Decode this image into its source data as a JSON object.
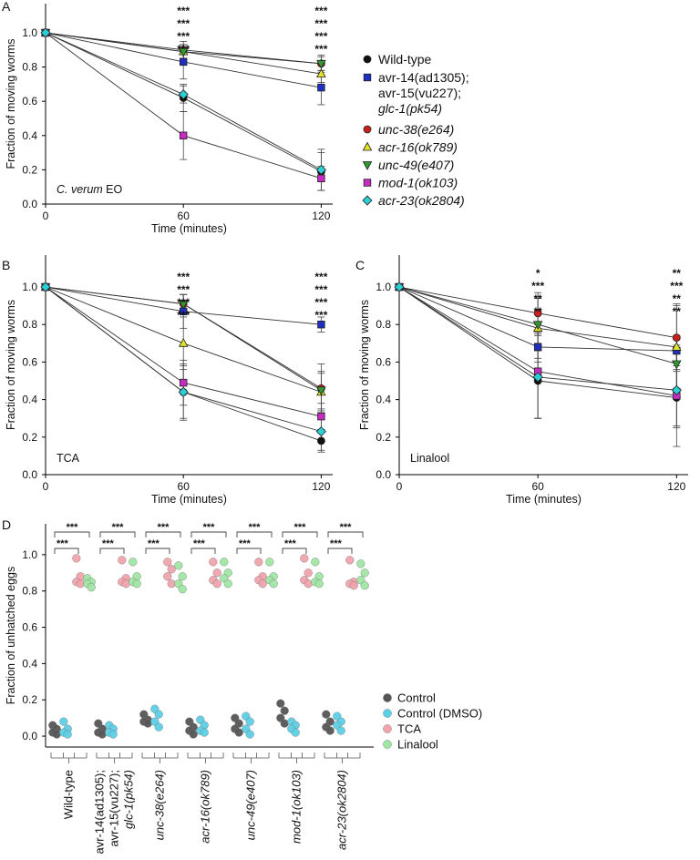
{
  "colors": {
    "wt": "#111111",
    "avr": "#1f2fbf",
    "unc38": "#c8201e",
    "acr16": "#e3e32a",
    "unc49": "#2f9a2f",
    "mod1": "#c62cc4",
    "acr23": "#2ad0d4",
    "star_blue": "#2a2ad8",
    "star_red": "#d82020",
    "star_yellow": "#e8e020",
    "star_green": "#20d020",
    "ctrl": "#555555",
    "dmso": "#5ccfe6",
    "tca": "#f0a3ac",
    "lin": "#9fe6a3"
  },
  "strains": [
    "Wild-type",
    "avr-14(ad1305); avr-15(vu227); glc-1(pk54)",
    "unc-38(e264)",
    "acr-16(ok789)",
    "unc-49(e407)",
    "mod-1(ok103)",
    "acr-23(ok2804)"
  ],
  "chart_data": [
    {
      "panel": "A",
      "type": "line",
      "note": "C. verum EO",
      "xlabel": "Time (minutes)",
      "ylabel": "Fraction of moving worms",
      "xticks": [
        0,
        60,
        120
      ],
      "yticks": [
        "0.0",
        "0.2",
        "0.4",
        "0.6",
        "0.8",
        "1.0"
      ],
      "xlim": [
        0,
        125
      ],
      "ylim": [
        0,
        1.17
      ],
      "x": [
        0,
        60,
        120
      ],
      "series": [
        {
          "name": "Wild-type",
          "key": "wt",
          "marker": "circle",
          "values": [
            1.0,
            0.62,
            0.19
          ],
          "err": [
            0,
            0.08,
            0.11
          ]
        },
        {
          "name": "avr-14(ad1305); avr-15(vu227); glc-1(pk54)",
          "key": "avr",
          "marker": "square",
          "values": [
            1.0,
            0.83,
            0.68
          ],
          "err": [
            0,
            0.1,
            0.1
          ]
        },
        {
          "name": "unc-38(e264)",
          "key": "unc38",
          "marker": "circle",
          "values": [
            1.0,
            0.9,
            0.82
          ],
          "err": [
            0,
            0.05,
            0.05
          ]
        },
        {
          "name": "acr-16(ok789)",
          "key": "acr16",
          "marker": "triangle-up",
          "values": [
            1.0,
            0.89,
            0.76
          ],
          "err": [
            0,
            0.04,
            0.05
          ]
        },
        {
          "name": "unc-49(e407)",
          "key": "unc49",
          "marker": "triangle-down",
          "values": [
            1.0,
            0.89,
            0.82
          ],
          "err": [
            0,
            0.04,
            0.04
          ]
        },
        {
          "name": "mod-1(ok103)",
          "key": "mod1",
          "marker": "square",
          "values": [
            1.0,
            0.4,
            0.15
          ],
          "err": [
            0,
            0.14,
            0.07
          ]
        },
        {
          "name": "acr-23(ok2804)",
          "key": "acr23",
          "marker": "diamond",
          "values": [
            1.0,
            0.64,
            0.2
          ],
          "err": [
            0,
            0.05,
            0.12
          ]
        }
      ],
      "sig": [
        {
          "x": 60,
          "stars": [
            {
              "t": "***",
              "c": "star_blue"
            },
            {
              "t": "***",
              "c": "star_red"
            },
            {
              "t": "***",
              "c": "star_yellow"
            },
            {
              "t": "***",
              "c": "star_green"
            }
          ]
        },
        {
          "x": 120,
          "stars": [
            {
              "t": "***",
              "c": "star_blue"
            },
            {
              "t": "***",
              "c": "star_red"
            },
            {
              "t": "***",
              "c": "star_yellow"
            },
            {
              "t": "***",
              "c": "star_green"
            }
          ]
        }
      ]
    },
    {
      "panel": "B",
      "type": "line",
      "note": "TCA",
      "xlabel": "Time (minutes)",
      "ylabel": "Fraction of moving worms",
      "xticks": [
        0,
        60,
        120
      ],
      "yticks": [
        "0.0",
        "0.2",
        "0.4",
        "0.6",
        "0.8",
        "1.0"
      ],
      "xlim": [
        0,
        125
      ],
      "ylim": [
        0,
        1.17
      ],
      "x": [
        0,
        60,
        120
      ],
      "series": [
        {
          "name": "Wild-type",
          "key": "wt",
          "marker": "circle",
          "values": [
            1.0,
            0.44,
            0.18
          ],
          "err": [
            0,
            0.15,
            0.06
          ]
        },
        {
          "name": "avr-14(ad1305); avr-15(vu227); glc-1(pk54)",
          "key": "avr",
          "marker": "square",
          "values": [
            1.0,
            0.87,
            0.8
          ],
          "err": [
            0,
            0.09,
            0.04
          ]
        },
        {
          "name": "unc-38(e264)",
          "key": "unc38",
          "marker": "circle",
          "values": [
            1.0,
            0.91,
            0.46
          ],
          "err": [
            0,
            0.05,
            0.13
          ]
        },
        {
          "name": "acr-16(ok789)",
          "key": "acr16",
          "marker": "triangle-up",
          "values": [
            1.0,
            0.7,
            0.44
          ],
          "err": [
            0,
            0.14,
            0.1
          ]
        },
        {
          "name": "unc-49(e407)",
          "key": "unc49",
          "marker": "triangle-down",
          "values": [
            1.0,
            0.91,
            0.45
          ],
          "err": [
            0,
            0.05,
            0.1
          ]
        },
        {
          "name": "mod-1(ok103)",
          "key": "mod1",
          "marker": "square",
          "values": [
            1.0,
            0.49,
            0.31
          ],
          "err": [
            0,
            0.12,
            0.07
          ]
        },
        {
          "name": "acr-23(ok2804)",
          "key": "acr23",
          "marker": "diamond",
          "values": [
            1.0,
            0.44,
            0.23
          ],
          "err": [
            0,
            0.14,
            0.1
          ]
        }
      ],
      "sig": [
        {
          "x": 60,
          "stars": [
            {
              "t": "***",
              "c": "star_blue"
            },
            {
              "t": "***",
              "c": "star_red"
            },
            {
              "t": "***",
              "c": "star_yellow"
            },
            {
              "t": "***",
              "c": "star_green"
            }
          ]
        },
        {
          "x": 120,
          "stars": [
            {
              "t": "***",
              "c": "star_blue"
            },
            {
              "t": "***",
              "c": "star_red"
            },
            {
              "t": "***",
              "c": "star_yellow"
            },
            {
              "t": "***",
              "c": "star_green"
            }
          ]
        }
      ]
    },
    {
      "panel": "C",
      "type": "line",
      "note": "Linalool",
      "xlabel": "Time (minutes)",
      "ylabel": "Fraction of moving worms",
      "xticks": [
        0,
        60,
        120
      ],
      "yticks": [
        "0.0",
        "0.2",
        "0.4",
        "0.6",
        "0.8",
        "1.0"
      ],
      "xlim": [
        0,
        125
      ],
      "ylim": [
        0,
        1.17
      ],
      "x": [
        0,
        60,
        120
      ],
      "series": [
        {
          "name": "Wild-type",
          "key": "wt",
          "marker": "circle",
          "values": [
            1.0,
            0.5,
            0.41
          ],
          "err": [
            0,
            0.2,
            0.15
          ]
        },
        {
          "name": "avr-14(ad1305); avr-15(vu227); glc-1(pk54)",
          "key": "avr",
          "marker": "square",
          "values": [
            1.0,
            0.68,
            0.66
          ],
          "err": [
            0,
            0.08,
            0.08
          ]
        },
        {
          "name": "unc-38(e264)",
          "key": "unc38",
          "marker": "circle",
          "values": [
            1.0,
            0.86,
            0.73
          ],
          "err": [
            0,
            0.11,
            0.18
          ]
        },
        {
          "name": "acr-16(ok789)",
          "key": "acr16",
          "marker": "triangle-up",
          "values": [
            1.0,
            0.78,
            0.68
          ],
          "err": [
            0,
            0.16,
            0.22
          ]
        },
        {
          "name": "unc-49(e407)",
          "key": "unc49",
          "marker": "triangle-down",
          "values": [
            1.0,
            0.8,
            0.59
          ],
          "err": [
            0,
            0.14,
            0.13
          ]
        },
        {
          "name": "mod-1(ok103)",
          "key": "mod1",
          "marker": "square",
          "values": [
            1.0,
            0.55,
            0.42
          ],
          "err": [
            0,
            0.25,
            0.27
          ]
        },
        {
          "name": "acr-23(ok2804)",
          "key": "acr23",
          "marker": "diamond",
          "values": [
            1.0,
            0.52,
            0.45
          ],
          "err": [
            0,
            0.22,
            0.2
          ]
        }
      ],
      "sig": [
        {
          "x": 60,
          "stars": [
            {
              "t": "*",
              "c": "star_blue"
            },
            {
              "t": "***",
              "c": "star_red"
            },
            {
              "t": "**",
              "c": "star_yellow"
            },
            {
              "t": "**",
              "c": "star_green"
            }
          ]
        },
        {
          "x": 120,
          "stars": [
            {
              "t": "**",
              "c": "star_blue"
            },
            {
              "t": "***",
              "c": "star_red"
            },
            {
              "t": "**",
              "c": "star_yellow"
            },
            {
              "t": "**",
              "c": "star_green"
            }
          ]
        }
      ]
    },
    {
      "panel": "D",
      "type": "scatter",
      "ylabel": "Fraction of unhatched eggs",
      "yticks": [
        "0.0",
        "0.2",
        "0.4",
        "0.6",
        "0.8",
        "1.0"
      ],
      "ylim": [
        -0.06,
        1.17
      ],
      "categories": [
        "Wild-type",
        "avr-14(ad1305); avr-15(vu227); glc-1(pk54)",
        "unc-38(e264)",
        "acr-16(ok789)",
        "unc-49(e407)",
        "mod-1(ok103)",
        "acr-23(ok2804)"
      ],
      "legend": [
        {
          "label": "Control",
          "key": "ctrl"
        },
        {
          "label": "Control (DMSO)",
          "key": "dmso"
        },
        {
          "label": "TCA",
          "key": "tca"
        },
        {
          "label": "Linalool",
          "key": "lin"
        }
      ],
      "groups": [
        {
          "ctrl": [
            0.06,
            0.04,
            0.02,
            0.01
          ],
          "dmso": [
            0.08,
            0.04,
            0.02,
            0.01
          ],
          "tca": [
            0.98,
            0.88,
            0.85,
            0.84
          ],
          "lin": [
            0.87,
            0.85,
            0.84,
            0.82
          ]
        },
        {
          "ctrl": [
            0.07,
            0.04,
            0.02,
            0.01
          ],
          "dmso": [
            0.06,
            0.04,
            0.02,
            0.01
          ],
          "tca": [
            0.97,
            0.87,
            0.85,
            0.84
          ],
          "lin": [
            0.96,
            0.88,
            0.85,
            0.84
          ]
        },
        {
          "ctrl": [
            0.12,
            0.09,
            0.08,
            0.07
          ],
          "dmso": [
            0.15,
            0.12,
            0.08,
            0.05
          ],
          "tca": [
            0.96,
            0.92,
            0.88,
            0.84
          ],
          "lin": [
            0.94,
            0.88,
            0.84,
            0.81
          ]
        },
        {
          "ctrl": [
            0.08,
            0.05,
            0.03,
            0.01
          ],
          "dmso": [
            0.09,
            0.06,
            0.03,
            0.02
          ],
          "tca": [
            0.96,
            0.9,
            0.86,
            0.84
          ],
          "lin": [
            0.96,
            0.9,
            0.87,
            0.84
          ]
        },
        {
          "ctrl": [
            0.1,
            0.07,
            0.04,
            0.02
          ],
          "dmso": [
            0.11,
            0.08,
            0.04,
            0.01
          ],
          "tca": [
            0.96,
            0.88,
            0.86,
            0.84
          ],
          "lin": [
            0.96,
            0.88,
            0.86,
            0.84
          ]
        },
        {
          "ctrl": [
            0.18,
            0.14,
            0.1,
            0.07
          ],
          "dmso": [
            0.08,
            0.06,
            0.04,
            0.02
          ],
          "tca": [
            0.98,
            0.9,
            0.86,
            0.84
          ],
          "lin": [
            0.96,
            0.88,
            0.85,
            0.84
          ]
        },
        {
          "ctrl": [
            0.12,
            0.08,
            0.05,
            0.03
          ],
          "dmso": [
            0.11,
            0.08,
            0.06,
            0.03
          ],
          "tca": [
            0.97,
            0.85,
            0.84,
            0.83
          ],
          "lin": [
            0.95,
            0.9,
            0.86,
            0.83
          ]
        }
      ],
      "sig_label": "***"
    }
  ]
}
